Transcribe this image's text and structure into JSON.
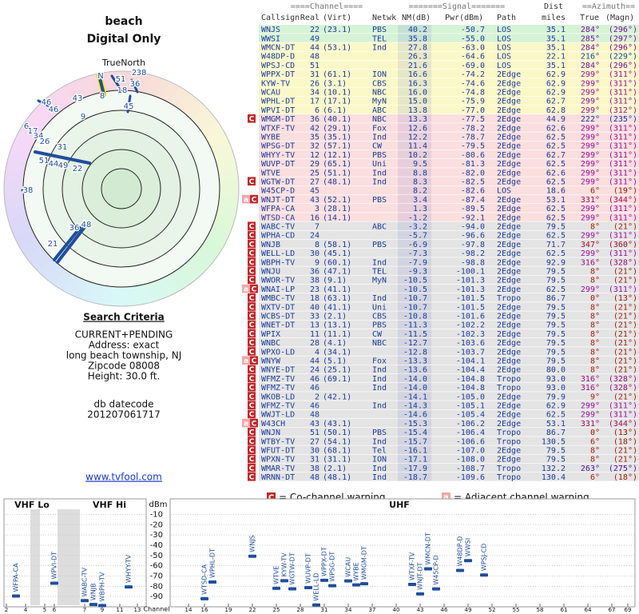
{
  "header": {
    "title": "beach",
    "subtitle": "Digital Only"
  },
  "polar": {
    "north_label": "TrueNorth",
    "labels": [
      "N",
      "2",
      "38",
      "51",
      "36",
      "18",
      "8",
      "45",
      "46",
      "46",
      "43",
      "9",
      "6",
      "17",
      "34",
      "26",
      "31",
      "51",
      "44",
      "49",
      "22",
      "38",
      "21",
      "36",
      "48"
    ]
  },
  "criteria": {
    "title": "Search Criteria",
    "lines": [
      "CURRENT+PENDING",
      "Address: exact",
      "long beach township, NJ",
      "Zipcode 08008",
      "Height: 30.0 ft."
    ],
    "datecode_label": "db datecode",
    "datecode": "201207061717",
    "link": "www.tvfool.com"
  },
  "table": {
    "header_top": {
      "channel": "====Channel====",
      "signal": "=======Signal=======",
      "dist": "Dist",
      "azimuth": "==Azimuth=="
    },
    "header": {
      "callsign": "Callsign",
      "real": "Real",
      "virt": "(Virt)",
      "netwk": "Netwk",
      "nm": "NM(dB)",
      "pwr": "Pwr(dBm)",
      "path": "Path",
      "dist": "miles",
      "true": "True",
      "magn": "(Magn)"
    },
    "rows": [
      {
        "callsign": "WNJS",
        "real": "22",
        "virt": "(23.1)",
        "netwk": "PBS",
        "nm": "40.2",
        "pwr": "-50.7",
        "path": "LOS",
        "dist": "35.1",
        "true": "284°",
        "magn": "(296°)"
      },
      {
        "callsign": "WWSI",
        "real": "49",
        "netwk": "TEL",
        "nm": "35.8",
        "pwr": "-55.0",
        "path": "LOS",
        "dist": "35.1",
        "true": "285°",
        "magn": "(297°)"
      },
      {
        "callsign": "WMCN-DT",
        "real": "44",
        "virt": "(53.1)",
        "netwk": "Ind",
        "nm": "27.8",
        "pwr": "-63.0",
        "path": "LOS",
        "dist": "35.1",
        "true": "284°",
        "magn": "(296°)"
      },
      {
        "callsign": "W48DP-D",
        "real": "48",
        "nm": "26.3",
        "pwr": "-64.6",
        "path": "LOS",
        "dist": "22.1",
        "true": "216°",
        "magn": "(229°)"
      },
      {
        "callsign": "WPSJ-CD",
        "real": "51",
        "nm": "21.6",
        "pwr": "-69.0",
        "path": "LOS",
        "dist": "35.1",
        "true": "284°",
        "magn": "(296°)"
      },
      {
        "callsign": "WPPX-DT",
        "real": "31",
        "virt": "(61.1)",
        "netwk": "ION",
        "nm": "16.6",
        "pwr": "-74.2",
        "path": "2Edge",
        "dist": "62.9",
        "true": "299°",
        "magn": "(311°)"
      },
      {
        "callsign": "KYW-TV",
        "real": "26",
        "virt": "(3.1)",
        "netwk": "CBS",
        "nm": "16.3",
        "pwr": "-74.6",
        "path": "2Edge",
        "dist": "62.9",
        "true": "299°",
        "magn": "(311°)"
      },
      {
        "callsign": "WCAU",
        "real": "34",
        "virt": "(10.1)",
        "netwk": "NBC",
        "nm": "16.0",
        "pwr": "-74.8",
        "path": "2Edge",
        "dist": "62.9",
        "true": "299°",
        "magn": "(311°)"
      },
      {
        "callsign": "WPHL-DT",
        "real": "17",
        "virt": "(17.1)",
        "netwk": "MyN",
        "nm": "15.0",
        "pwr": "-75.9",
        "path": "2Edge",
        "dist": "62.7",
        "true": "299°",
        "magn": "(311°)"
      },
      {
        "callsign": "WPVI-DT",
        "real": "6",
        "virt": "(6.1)",
        "netwk": "ABC",
        "nm": "13.8",
        "pwr": "-77.0",
        "path": "2Edge",
        "dist": "62.8",
        "true": "299°",
        "magn": "(312°)"
      },
      {
        "callsign": "WMGM-DT",
        "real": "36",
        "virt": "(40.1)",
        "netwk": "NBC",
        "nm": "13.3",
        "pwr": "-77.5",
        "path": "2Edge",
        "dist": "44.9",
        "true": "222°",
        "magn": "(235°)",
        "warn": "C"
      },
      {
        "callsign": "WTXF-TV",
        "real": "42",
        "virt": "(29.1)",
        "netwk": "Fox",
        "nm": "12.6",
        "pwr": "-78.2",
        "path": "2Edge",
        "dist": "62.6",
        "true": "299°",
        "magn": "(311°)"
      },
      {
        "callsign": "WYBE",
        "real": "35",
        "virt": "(35.1)",
        "netwk": "Ind",
        "nm": "12.2",
        "pwr": "-78.7",
        "path": "2Edge",
        "dist": "62.5",
        "true": "299°",
        "magn": "(311°)"
      },
      {
        "callsign": "WPSG-DT",
        "real": "32",
        "virt": "(57.1)",
        "netwk": "CW",
        "nm": "11.4",
        "pwr": "-79.5",
        "path": "2Edge",
        "dist": "62.5",
        "true": "299°",
        "magn": "(311°)"
      },
      {
        "callsign": "WHYY-TV",
        "real": "12",
        "virt": "(12.1)",
        "netwk": "PBS",
        "nm": "10.2",
        "pwr": "-80.6",
        "path": "2Edge",
        "dist": "62.7",
        "true": "299°",
        "magn": "(311°)"
      },
      {
        "callsign": "WUVP-DT",
        "real": "29",
        "virt": "(65.1)",
        "netwk": "Uni",
        "nm": "9.5",
        "pwr": "-81.3",
        "path": "2Edge",
        "dist": "62.5",
        "true": "299°",
        "magn": "(311°)"
      },
      {
        "callsign": "WTVE",
        "real": "25",
        "virt": "(51.1)",
        "netwk": "Ind",
        "nm": "8.8",
        "pwr": "-82.0",
        "path": "2Edge",
        "dist": "62.6",
        "true": "299°",
        "magn": "(311°)"
      },
      {
        "callsign": "WGTW-DT",
        "real": "27",
        "virt": "(48.1)",
        "netwk": "Ind",
        "nm": "8.3",
        "pwr": "-82.5",
        "path": "2Edge",
        "dist": "62.5",
        "true": "299°",
        "magn": "(311°)",
        "warn": "C"
      },
      {
        "callsign": "W45CP-D",
        "real": "45",
        "nm": "8.2",
        "pwr": "-82.6",
        "path": "LOS",
        "dist": "18.6",
        "true": "6°",
        "magn": "(19°)"
      },
      {
        "callsign": "WNJT-DT",
        "real": "43",
        "virt": "(52.1)",
        "netwk": "PBS",
        "nm": "3.4",
        "pwr": "-87.4",
        "path": "2Edge",
        "dist": "53.1",
        "true": "331°",
        "magn": "(344°)",
        "warn": "aC"
      },
      {
        "callsign": "WFPA-CA",
        "real": "3",
        "virt": "(28.1)",
        "nm": "1.3",
        "pwr": "-89.5",
        "path": "2Edge",
        "dist": "62.5",
        "true": "299°",
        "magn": "(311°)"
      },
      {
        "callsign": "WTSD-CA",
        "real": "16",
        "virt": "(14.1)",
        "nm": "-1.2",
        "pwr": "-92.1",
        "path": "2Edge",
        "dist": "62.5",
        "true": "299°",
        "magn": "(311°)"
      },
      {
        "callsign": "WABC-TV",
        "real": "7",
        "netwk": "ABC",
        "nm": "-3.2",
        "pwr": "-94.0",
        "path": "2Edge",
        "dist": "79.5",
        "true": "8°",
        "magn": "(21°)",
        "warn": "C"
      },
      {
        "callsign": "WPHA-CD",
        "real": "24",
        "nm": "-5.7",
        "pwr": "-96.6",
        "path": "2Edge",
        "dist": "62.5",
        "true": "299°",
        "magn": "(311°)",
        "warn": "C"
      },
      {
        "callsign": "WNJB",
        "real": "8",
        "virt": "(58.1)",
        "netwk": "PBS",
        "nm": "-6.9",
        "pwr": "-97.8",
        "path": "2Edge",
        "dist": "71.7",
        "true": "347°",
        "magn": "(360°)",
        "warn": "C"
      },
      {
        "callsign": "WELL-LD",
        "real": "30",
        "virt": "(45.1)",
        "nm": "-7.3",
        "pwr": "-98.2",
        "path": "2Edge",
        "dist": "62.5",
        "true": "299°",
        "magn": "(311°)",
        "warn": "C"
      },
      {
        "callsign": "WBPH-TV",
        "real": "9",
        "virt": "(60.1)",
        "netwk": "Ind",
        "nm": "-7.9",
        "pwr": "-98.8",
        "path": "2Edge",
        "dist": "92.9",
        "true": "316°",
        "magn": "(328°)",
        "warn": "C"
      },
      {
        "callsign": "WNJU",
        "real": "36",
        "virt": "(47.1)",
        "netwk": "TEL",
        "nm": "-9.3",
        "pwr": "-100.1",
        "path": "2Edge",
        "dist": "79.5",
        "true": "8°",
        "magn": "(21°)",
        "warn": "C"
      },
      {
        "callsign": "WWOR-TV",
        "real": "38",
        "virt": "(9.1)",
        "netwk": "MyN",
        "nm": "-10.5",
        "pwr": "-101.3",
        "path": "2Edge",
        "dist": "79.5",
        "true": "8°",
        "magn": "(21°)",
        "warn": "C"
      },
      {
        "callsign": "WNAI-LP",
        "real": "23",
        "virt": "(41.1)",
        "nm": "-10.5",
        "pwr": "-101.3",
        "path": "2Edge",
        "dist": "62.5",
        "true": "299°",
        "magn": "(311°)",
        "warn": "aC"
      },
      {
        "callsign": "WMBC-TV",
        "real": "18",
        "virt": "(63.1)",
        "netwk": "Ind",
        "nm": "-10.7",
        "pwr": "-101.5",
        "path": "Tropo",
        "dist": "86.7",
        "true": "0°",
        "magn": "(13°)",
        "warn": "C"
      },
      {
        "callsign": "WXTV-DT",
        "real": "40",
        "virt": "(41.1)",
        "netwk": "Uni",
        "nm": "-10.7",
        "pwr": "-101.5",
        "path": "2Edge",
        "dist": "79.5",
        "true": "8°",
        "magn": "(21°)",
        "warn": "C"
      },
      {
        "callsign": "WCBS-DT",
        "real": "33",
        "virt": "(2.1)",
        "netwk": "CBS",
        "nm": "-10.8",
        "pwr": "-101.6",
        "path": "2Edge",
        "dist": "79.5",
        "true": "8°",
        "magn": "(21°)",
        "warn": "C"
      },
      {
        "callsign": "WNET-DT",
        "real": "13",
        "virt": "(13.1)",
        "netwk": "PBS",
        "nm": "-11.3",
        "pwr": "-102.2",
        "path": "2Edge",
        "dist": "79.5",
        "true": "8°",
        "magn": "(21°)",
        "warn": "C"
      },
      {
        "callsign": "WPIX",
        "real": "11",
        "virt": "(11.1)",
        "netwk": "CW",
        "nm": "-11.5",
        "pwr": "-102.3",
        "path": "2Edge",
        "dist": "79.5",
        "true": "8°",
        "magn": "(21°)",
        "warn": "C"
      },
      {
        "callsign": "WNBC",
        "real": "28",
        "virt": "(4.1)",
        "netwk": "NBC",
        "nm": "-12.7",
        "pwr": "-103.6",
        "path": "2Edge",
        "dist": "79.5",
        "true": "8°",
        "magn": "(21°)",
        "warn": "C"
      },
      {
        "callsign": "WPXO-LD",
        "real": "4",
        "virt": "(34.1)",
        "nm": "-12.8",
        "pwr": "-103.7",
        "path": "2Edge",
        "dist": "79.5",
        "true": "8°",
        "magn": "(21°)",
        "warn": "C"
      },
      {
        "callsign": "WNYW",
        "real": "44",
        "virt": "(5.1)",
        "netwk": "Fox",
        "nm": "-13.3",
        "pwr": "-104.1",
        "path": "2Edge",
        "dist": "79.5",
        "true": "8°",
        "magn": "(21°)",
        "warn": "aC"
      },
      {
        "callsign": "WNYE-DT",
        "real": "24",
        "virt": "(25.1)",
        "netwk": "Ind",
        "nm": "-13.6",
        "pwr": "-104.4",
        "path": "2Edge",
        "dist": "80.0",
        "true": "8°",
        "magn": "(21°)",
        "warn": "C"
      },
      {
        "callsign": "WFMZ-TV",
        "real": "46",
        "virt": "(69.1)",
        "netwk": "Ind",
        "nm": "-14.0",
        "pwr": "-104.8",
        "path": "Tropo",
        "dist": "93.0",
        "true": "316°",
        "magn": "(328°)",
        "warn": "C"
      },
      {
        "callsign": "WFMZ-TV",
        "real": "46",
        "netwk": "Ind",
        "nm": "-14.0",
        "pwr": "-104.8",
        "path": "Tropo",
        "dist": "93.0",
        "true": "316°",
        "magn": "(328°)",
        "warn": "C"
      },
      {
        "callsign": "WKOB-LD",
        "real": "2",
        "virt": "(42.1)",
        "nm": "-14.1",
        "pwr": "-105.0",
        "path": "2Edge",
        "dist": "79.9",
        "true": "9°",
        "magn": "(21°)",
        "warn": "C"
      },
      {
        "callsign": "WFMZ-TV",
        "real": "46",
        "netwk": "Ind",
        "nm": "-14.3",
        "pwr": "-105.1",
        "path": "2Edge",
        "dist": "62.9",
        "true": "299°",
        "magn": "(311°)",
        "warn": "C"
      },
      {
        "callsign": "WWJT-LD",
        "real": "48",
        "nm": "-14.6",
        "pwr": "-105.4",
        "path": "2Edge",
        "dist": "62.5",
        "true": "299°",
        "magn": "(311°)",
        "warn": "C"
      },
      {
        "callsign": "W43CH",
        "real": "43",
        "virt": "(43.1)",
        "nm": "-15.3",
        "pwr": "-106.2",
        "path": "2Edge",
        "dist": "53.1",
        "true": "331°",
        "magn": "(344°)",
        "warn": "aC"
      },
      {
        "callsign": "WNJN",
        "real": "51",
        "virt": "(50.1)",
        "netwk": "PBS",
        "nm": "-15.4",
        "pwr": "-106.4",
        "path": "Tropo",
        "dist": "86.7",
        "true": "0°",
        "magn": "(13°)",
        "warn": "C"
      },
      {
        "callsign": "WTBY-TV",
        "real": "27",
        "virt": "(54.1)",
        "netwk": "Ind",
        "nm": "-15.7",
        "pwr": "-106.6",
        "path": "Tropo",
        "dist": "130.5",
        "true": "6°",
        "magn": "(18°)",
        "warn": "C"
      },
      {
        "callsign": "WFUT-DT",
        "real": "30",
        "virt": "(68.1)",
        "netwk": "Tel",
        "nm": "-16.1",
        "pwr": "-107.0",
        "path": "2Edge",
        "dist": "79.5",
        "true": "8°",
        "magn": "(21°)",
        "warn": "C"
      },
      {
        "callsign": "WPXN-TV",
        "real": "31",
        "virt": "(31.1)",
        "netwk": "ION",
        "nm": "-17.1",
        "pwr": "-108.0",
        "path": "2Edge",
        "dist": "79.5",
        "true": "8°",
        "magn": "(21°)",
        "warn": "C"
      },
      {
        "callsign": "WMAR-TV",
        "real": "38",
        "virt": "(2.1)",
        "netwk": "Ind",
        "nm": "-17.9",
        "pwr": "-108.7",
        "path": "Tropo",
        "dist": "132.2",
        "true": "263°",
        "magn": "(275°)",
        "warn": "C"
      },
      {
        "callsign": "WRNN-DT",
        "real": "48",
        "virt": "(48.1)",
        "netwk": "Ind",
        "nm": "-18.7",
        "pwr": "-109.6",
        "path": "Tropo",
        "dist": "130.4",
        "true": "6°",
        "magn": "(18°)",
        "warn": "C"
      }
    ]
  },
  "legend": {
    "co_icon": "C",
    "co_text": "= Co-channel warning",
    "adj_icon": "a",
    "adj_text": "= Adjacent channel warning"
  },
  "chart_data": {
    "type": "scatter",
    "panels": [
      "VHF Lo",
      "VHF Hi",
      "UHF"
    ],
    "x_label": "Channel",
    "y_label": "dBm",
    "x": [
      3,
      6,
      7,
      8,
      9,
      12,
      16,
      17,
      22,
      25,
      26,
      27,
      29,
      30,
      31,
      32,
      34,
      35,
      36,
      42,
      43,
      44,
      45,
      48,
      49,
      51
    ],
    "labels": [
      "WFPA-CA",
      "WPVI-DT",
      "WABC-TV",
      "WNJB",
      "WBPH-TV",
      "WHYY-TV",
      "WTSD-CA",
      "WPHL-DT",
      "WNJS",
      "WTVE",
      "KYW-TV",
      "WGTW-DT",
      "WUVP-DT",
      "WELL-LD",
      "WPPX-DT",
      "WPSG-DT",
      "WCAU",
      "WYBE",
      "WMGM-DT",
      "WTXF-TV",
      "WNJT-DT",
      "WMCN-DT",
      "W45CP-D",
      "W48DP-D",
      "WWSI",
      "WPSJ-CD"
    ],
    "values": [
      -89.5,
      -77.0,
      -94.0,
      -97.8,
      -98.8,
      -80.6,
      -92.1,
      -75.9,
      -50.7,
      -82.0,
      -74.6,
      -82.5,
      -81.3,
      -98.2,
      -74.2,
      -79.5,
      -74.8,
      -78.7,
      -77.5,
      -78.2,
      -87.4,
      -63.0,
      -82.6,
      -64.6,
      -55.0,
      -69.0
    ],
    "color": "#1f4e9c",
    "ylim": [
      -100,
      -5
    ],
    "yticks": [
      -10,
      -20,
      -30,
      -40,
      -50,
      -60,
      -70,
      -80,
      -90
    ],
    "xticks": [
      2,
      4,
      5,
      6,
      7,
      9,
      11,
      13,
      14,
      16,
      19,
      22,
      25,
      28,
      31,
      34,
      37,
      40,
      43,
      46,
      49,
      52,
      55,
      58,
      61,
      64,
      67,
      69
    ],
    "grid": true
  }
}
